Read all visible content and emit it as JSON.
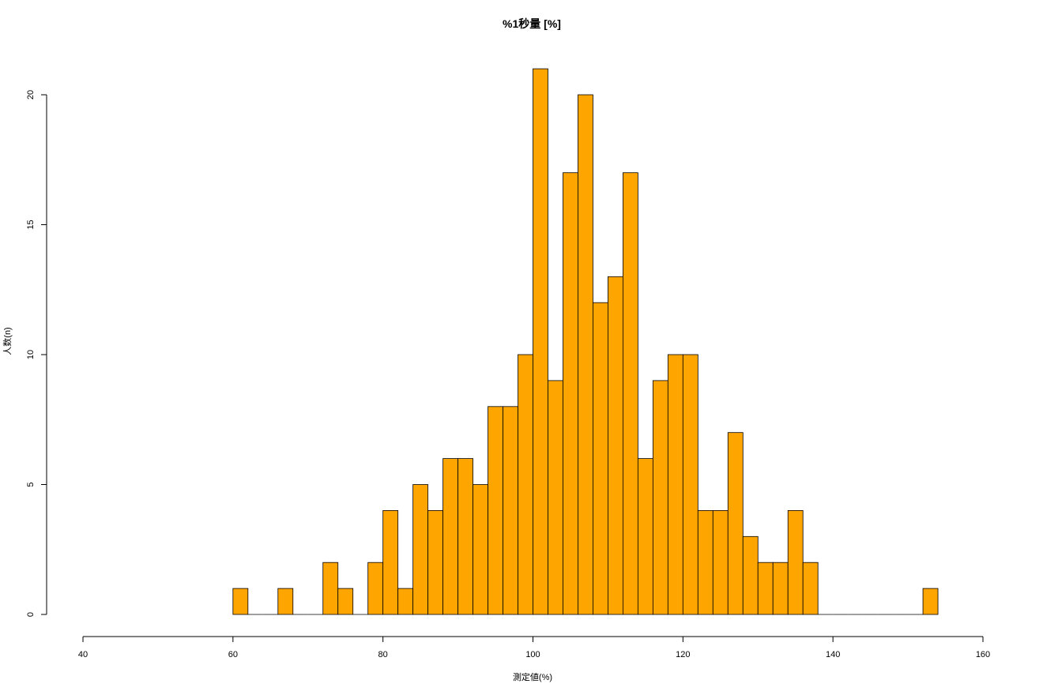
{
  "chart_data": {
    "type": "bar",
    "title": "%1秒量 [%]",
    "xlabel": "測定値(%)",
    "ylabel": "人数(n)",
    "xlim": [
      40,
      160
    ],
    "ylim": [
      0,
      21
    ],
    "x_ticks": [
      "40",
      "60",
      "80",
      "100",
      "120",
      "140",
      "160"
    ],
    "y_ticks": [
      "0",
      "5",
      "10",
      "15",
      "20"
    ],
    "bin_width": 2,
    "bin_starts": [
      60,
      62,
      64,
      66,
      68,
      70,
      72,
      74,
      76,
      78,
      80,
      82,
      84,
      86,
      88,
      90,
      92,
      94,
      96,
      98,
      100,
      102,
      104,
      106,
      108,
      110,
      112,
      114,
      116,
      118,
      120,
      122,
      124,
      126,
      128,
      130,
      132,
      134,
      136,
      138,
      140,
      142,
      144,
      146,
      148,
      150,
      152
    ],
    "values": [
      1,
      0,
      0,
      1,
      0,
      0,
      2,
      1,
      0,
      2,
      4,
      1,
      5,
      4,
      6,
      6,
      5,
      8,
      8,
      10,
      21,
      9,
      17,
      20,
      12,
      13,
      17,
      6,
      9,
      10,
      10,
      4,
      4,
      7,
      3,
      2,
      2,
      4,
      2,
      0,
      0,
      0,
      0,
      0,
      0,
      0,
      1
    ],
    "colors": {
      "bar_fill": "#FFA500",
      "bar_stroke": "#000000",
      "axis": "#000000"
    }
  }
}
